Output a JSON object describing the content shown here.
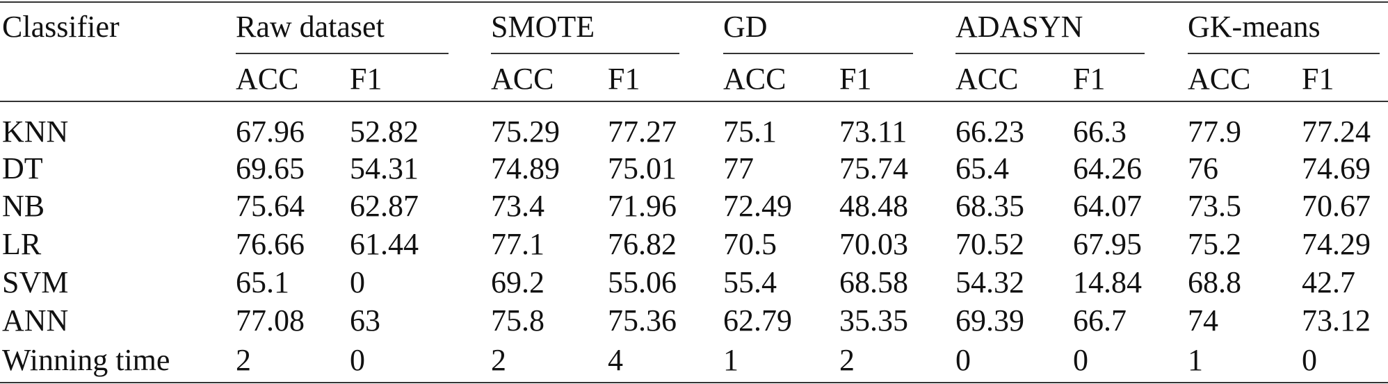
{
  "table": {
    "header": [
      "Classifier",
      "Raw dataset",
      "SMOTE",
      "GD",
      "ADASYN",
      "GK-means"
    ],
    "subheader": [
      "ACC",
      "F1",
      "ACC",
      "F1",
      "ACC",
      "F1",
      "ACC",
      "F1",
      "ACC",
      "F1"
    ],
    "rows": [
      [
        "KNN",
        "67.96",
        "52.82",
        "75.29",
        "77.27",
        "75.1",
        "73.11",
        "66.23",
        "66.3",
        "77.9",
        "77.24"
      ],
      [
        "DT",
        "69.65",
        "54.31",
        "74.89",
        "75.01",
        "77",
        "75.74",
        "65.4",
        "64.26",
        "76",
        "74.69"
      ],
      [
        "NB",
        "75.64",
        "62.87",
        "73.4",
        "71.96",
        "72.49",
        "48.48",
        "68.35",
        "64.07",
        "73.5",
        "70.67"
      ],
      [
        "LR",
        "76.66",
        "61.44",
        "77.1",
        "76.82",
        "70.5",
        "70.03",
        "70.52",
        "67.95",
        "75.2",
        "74.29"
      ],
      [
        "SVM",
        "65.1",
        "0",
        "69.2",
        "55.06",
        "55.4",
        "68.58",
        "54.32",
        "14.84",
        "68.8",
        "42.7"
      ],
      [
        "ANN",
        "77.08",
        "63",
        "75.8",
        "75.36",
        "62.79",
        "35.35",
        "69.39",
        "66.7",
        "74",
        "73.12"
      ],
      [
        "Winning time",
        "2",
        "0",
        "2",
        "4",
        "1",
        "2",
        "0",
        "0",
        "1",
        "0"
      ]
    ]
  }
}
